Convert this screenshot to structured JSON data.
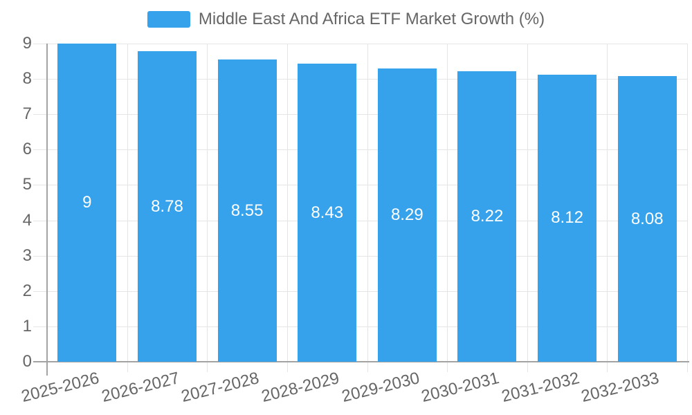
{
  "legend": {
    "label": "Middle East And Africa ETF Market Growth (%)",
    "swatch_icon": "legend-swatch"
  },
  "chart_data": {
    "type": "bar",
    "title": "Middle East And Africa ETF Market Growth (%)",
    "categories": [
      "2025-2026",
      "2026-2027",
      "2027-2028",
      "2028-2029",
      "2029-2030",
      "2030-2031",
      "2031-2032",
      "2032-2033"
    ],
    "values": [
      9,
      8.78,
      8.55,
      8.43,
      8.29,
      8.22,
      8.12,
      8.08
    ],
    "value_labels": [
      "9",
      "8.78",
      "8.55",
      "8.43",
      "8.29",
      "8.22",
      "8.12",
      "8.08"
    ],
    "xlabel": "",
    "ylabel": "",
    "ylim": [
      0,
      9
    ],
    "y_ticks": [
      0,
      1,
      2,
      3,
      4,
      5,
      6,
      7,
      8,
      9
    ],
    "grid": true,
    "legend_position": "top-center",
    "x_label_rotation_deg": -14,
    "colors": {
      "bar": "#36A2EB",
      "value_label": "#FFFFFF",
      "axis_text": "#666666",
      "grid_line": "#E5E5E5",
      "axis_line": "#A3A3A3"
    }
  }
}
